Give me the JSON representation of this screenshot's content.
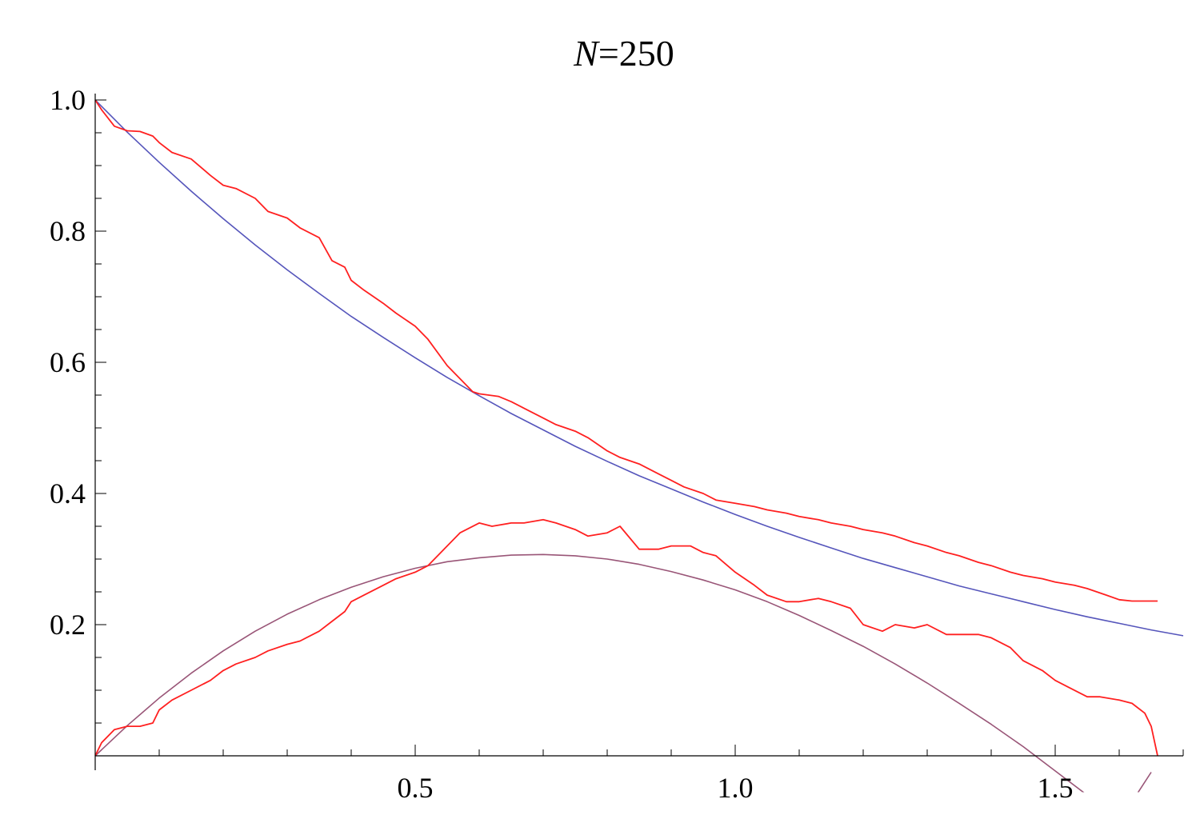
{
  "chart_data": {
    "type": "line",
    "title": {
      "italic": "N",
      "rest": "=250"
    },
    "xlabel": "",
    "ylabel": "",
    "xlim": [
      0,
      1.7
    ],
    "ylim": [
      -0.025,
      1.0
    ],
    "x_ticks": [
      {
        "value": 0.5,
        "label": "0.5"
      },
      {
        "value": 1.0,
        "label": "1.0"
      },
      {
        "value": 1.5,
        "label": "1.5"
      }
    ],
    "x_minor_step": 0.1,
    "y_ticks": [
      {
        "value": 0.2,
        "label": "0.2"
      },
      {
        "value": 0.4,
        "label": "0.4"
      },
      {
        "value": 0.6,
        "label": "0.6"
      },
      {
        "value": 0.8,
        "label": "0.8"
      },
      {
        "value": 1.0,
        "label": "1.0"
      }
    ],
    "y_minor_step": 0.05,
    "grid": false,
    "legend": "none",
    "colors": {
      "theory_decay": "#5555bb",
      "theory_hump": "#995577",
      "simulation": "#ff2020"
    },
    "series": [
      {
        "color": "theory_decay",
        "x": [
          0,
          0.05,
          0.1,
          0.15,
          0.2,
          0.25,
          0.3,
          0.35,
          0.4,
          0.45,
          0.5,
          0.55,
          0.6,
          0.65,
          0.7,
          0.75,
          0.8,
          0.85,
          0.9,
          0.95,
          1.0,
          1.05,
          1.1,
          1.15,
          1.2,
          1.25,
          1.3,
          1.35,
          1.4,
          1.45,
          1.5,
          1.55,
          1.6,
          1.65,
          1.7
        ],
        "y": [
          1.0,
          0.951,
          0.905,
          0.861,
          0.819,
          0.779,
          0.741,
          0.705,
          0.67,
          0.638,
          0.607,
          0.577,
          0.549,
          0.522,
          0.497,
          0.472,
          0.449,
          0.427,
          0.407,
          0.387,
          0.368,
          0.35,
          0.333,
          0.317,
          0.301,
          0.287,
          0.273,
          0.259,
          0.247,
          0.235,
          0.223,
          0.212,
          0.202,
          0.192,
          0.183
        ]
      },
      {
        "color": "theory_hump",
        "x": [
          0,
          0.05,
          0.1,
          0.15,
          0.2,
          0.25,
          0.3,
          0.35,
          0.4,
          0.45,
          0.5,
          0.55,
          0.6,
          0.65,
          0.7,
          0.75,
          0.8,
          0.85,
          0.9,
          0.95,
          1.0,
          1.05,
          1.1,
          1.15,
          1.2,
          1.25,
          1.3,
          1.35,
          1.4,
          1.45,
          1.5,
          1.55,
          1.6,
          1.65
        ],
        "y": [
          0.0,
          0.046,
          0.088,
          0.126,
          0.16,
          0.19,
          0.216,
          0.238,
          0.257,
          0.273,
          0.286,
          0.296,
          0.302,
          0.306,
          0.307,
          0.305,
          0.3,
          0.292,
          0.281,
          0.268,
          0.253,
          0.235,
          0.214,
          0.191,
          0.167,
          0.14,
          0.111,
          0.08,
          0.048,
          0.014,
          -0.023,
          -0.06,
          -0.1,
          -0.025
        ]
      },
      {
        "color": "simulation",
        "x": [
          0,
          0.01,
          0.03,
          0.05,
          0.07,
          0.09,
          0.1,
          0.12,
          0.15,
          0.18,
          0.2,
          0.22,
          0.25,
          0.27,
          0.3,
          0.32,
          0.35,
          0.37,
          0.39,
          0.4,
          0.42,
          0.45,
          0.47,
          0.5,
          0.52,
          0.55,
          0.57,
          0.59,
          0.6,
          0.63,
          0.65,
          0.67,
          0.7,
          0.72,
          0.75,
          0.77,
          0.8,
          0.82,
          0.85,
          0.88,
          0.9,
          0.92,
          0.95,
          0.97,
          1.0,
          1.03,
          1.05,
          1.08,
          1.1,
          1.13,
          1.15,
          1.18,
          1.2,
          1.23,
          1.25,
          1.28,
          1.3,
          1.33,
          1.35,
          1.38,
          1.4,
          1.43,
          1.45,
          1.48,
          1.5,
          1.53,
          1.55,
          1.58,
          1.6,
          1.62,
          1.64,
          1.66
        ],
        "y": [
          1.0,
          0.985,
          0.96,
          0.953,
          0.952,
          0.945,
          0.935,
          0.92,
          0.91,
          0.885,
          0.87,
          0.865,
          0.85,
          0.83,
          0.82,
          0.805,
          0.79,
          0.755,
          0.745,
          0.725,
          0.71,
          0.69,
          0.675,
          0.655,
          0.635,
          0.595,
          0.575,
          0.555,
          0.552,
          0.548,
          0.54,
          0.53,
          0.515,
          0.505,
          0.495,
          0.485,
          0.465,
          0.455,
          0.445,
          0.43,
          0.42,
          0.41,
          0.4,
          0.39,
          0.385,
          0.38,
          0.375,
          0.37,
          0.365,
          0.36,
          0.355,
          0.35,
          0.345,
          0.34,
          0.335,
          0.325,
          0.32,
          0.31,
          0.305,
          0.295,
          0.29,
          0.28,
          0.275,
          0.27,
          0.265,
          0.26,
          0.255,
          0.245,
          0.238,
          0.236,
          0.236,
          0.236
        ]
      },
      {
        "color": "simulation",
        "x": [
          0,
          0.01,
          0.03,
          0.05,
          0.07,
          0.09,
          0.1,
          0.12,
          0.15,
          0.18,
          0.2,
          0.22,
          0.25,
          0.27,
          0.3,
          0.32,
          0.35,
          0.37,
          0.39,
          0.4,
          0.42,
          0.45,
          0.47,
          0.5,
          0.52,
          0.55,
          0.57,
          0.6,
          0.62,
          0.65,
          0.67,
          0.7,
          0.72,
          0.75,
          0.77,
          0.8,
          0.82,
          0.85,
          0.88,
          0.9,
          0.93,
          0.95,
          0.97,
          1.0,
          1.03,
          1.05,
          1.08,
          1.1,
          1.13,
          1.15,
          1.18,
          1.2,
          1.23,
          1.25,
          1.28,
          1.3,
          1.33,
          1.35,
          1.38,
          1.4,
          1.43,
          1.45,
          1.48,
          1.5,
          1.52,
          1.55,
          1.57,
          1.6,
          1.62,
          1.64,
          1.65,
          1.66
        ],
        "y": [
          0.0,
          0.02,
          0.04,
          0.045,
          0.045,
          0.05,
          0.07,
          0.085,
          0.1,
          0.115,
          0.13,
          0.14,
          0.15,
          0.16,
          0.17,
          0.175,
          0.19,
          0.205,
          0.22,
          0.235,
          0.245,
          0.26,
          0.27,
          0.28,
          0.29,
          0.32,
          0.34,
          0.355,
          0.35,
          0.355,
          0.355,
          0.36,
          0.355,
          0.345,
          0.335,
          0.34,
          0.35,
          0.315,
          0.315,
          0.32,
          0.32,
          0.31,
          0.305,
          0.28,
          0.26,
          0.245,
          0.235,
          0.235,
          0.24,
          0.235,
          0.225,
          0.2,
          0.19,
          0.2,
          0.195,
          0.2,
          0.185,
          0.185,
          0.185,
          0.18,
          0.165,
          0.145,
          0.13,
          0.115,
          0.105,
          0.09,
          0.09,
          0.085,
          0.08,
          0.065,
          0.045,
          0.0
        ]
      }
    ]
  }
}
